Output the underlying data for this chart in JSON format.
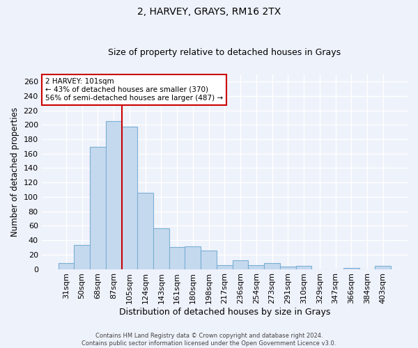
{
  "title": "2, HARVEY, GRAYS, RM16 2TX",
  "subtitle": "Size of property relative to detached houses in Grays",
  "xlabel": "Distribution of detached houses by size in Grays",
  "ylabel": "Number of detached properties",
  "footer_line1": "Contains HM Land Registry data © Crown copyright and database right 2024.",
  "footer_line2": "Contains public sector information licensed under the Open Government Licence v3.0.",
  "categories": [
    "31sqm",
    "50sqm",
    "68sqm",
    "87sqm",
    "105sqm",
    "124sqm",
    "143sqm",
    "161sqm",
    "180sqm",
    "198sqm",
    "217sqm",
    "236sqm",
    "254sqm",
    "273sqm",
    "291sqm",
    "310sqm",
    "329sqm",
    "347sqm",
    "366sqm",
    "384sqm",
    "403sqm"
  ],
  "values": [
    8,
    33,
    169,
    205,
    197,
    106,
    57,
    30,
    31,
    26,
    5,
    12,
    5,
    8,
    3,
    4,
    0,
    0,
    2,
    0,
    4
  ],
  "bar_color": "#c5d9ee",
  "bar_edge_color": "#7aafd4",
  "vline_color": "#cc0000",
  "annotation_text": "2 HARVEY: 101sqm\n← 43% of detached houses are smaller (370)\n56% of semi-detached houses are larger (487) →",
  "annotation_box_color": "white",
  "annotation_box_edge": "#cc0000",
  "ylim": [
    0,
    270
  ],
  "yticks": [
    0,
    20,
    40,
    60,
    80,
    100,
    120,
    140,
    160,
    180,
    200,
    220,
    240,
    260
  ],
  "background_color": "#eef2fb",
  "grid_color": "#ffffff",
  "title_fontsize": 10,
  "subtitle_fontsize": 9,
  "xlabel_fontsize": 9,
  "ylabel_fontsize": 8.5,
  "tick_fontsize": 8,
  "annotation_fontsize": 7.5,
  "footer_fontsize": 6
}
